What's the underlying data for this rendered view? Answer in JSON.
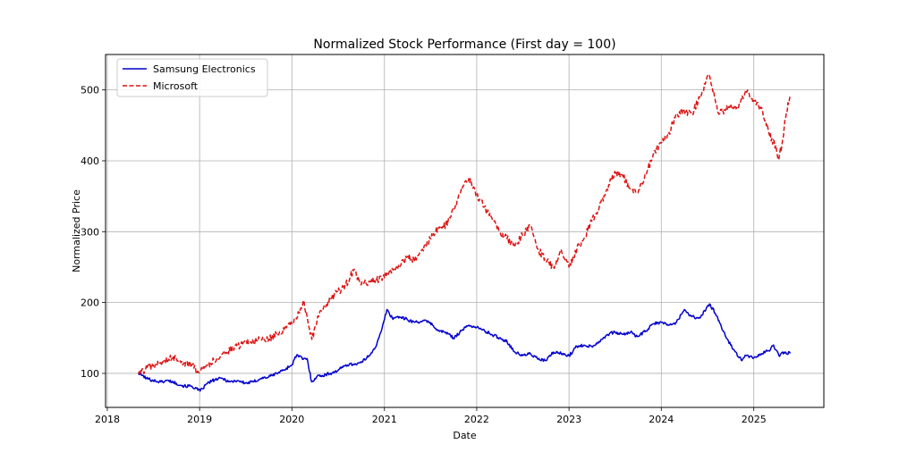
{
  "chart_data": {
    "type": "line",
    "title": "Normalized Stock Performance (First day = 100)",
    "xlabel": "Date",
    "ylabel": "Normalized Price",
    "xlim": [
      "2017-12-25",
      "2025-10-05"
    ],
    "ylim": [
      52,
      550
    ],
    "grid": true,
    "legend_position": "top-left",
    "x_ticks": [
      "2018",
      "2019",
      "2020",
      "2021",
      "2022",
      "2023",
      "2024",
      "2025"
    ],
    "y_ticks": [
      100,
      200,
      300,
      400,
      500
    ],
    "series": [
      {
        "name": "Samsung Electronics",
        "color": "#0000cc",
        "style": "solid",
        "points": [
          [
            "2018-05-04",
            100
          ],
          [
            "2018-05-20",
            97
          ],
          [
            "2018-06-05",
            93
          ],
          [
            "2018-07-01",
            90
          ],
          [
            "2018-08-01",
            88
          ],
          [
            "2018-09-01",
            90
          ],
          [
            "2018-10-01",
            86
          ],
          [
            "2018-11-01",
            82
          ],
          [
            "2018-12-01",
            82
          ],
          [
            "2019-01-03",
            75
          ],
          [
            "2019-02-01",
            86
          ],
          [
            "2019-03-01",
            91
          ],
          [
            "2019-04-01",
            93
          ],
          [
            "2019-05-01",
            88
          ],
          [
            "2019-06-01",
            90
          ],
          [
            "2019-07-01",
            86
          ],
          [
            "2019-08-01",
            88
          ],
          [
            "2019-09-01",
            93
          ],
          [
            "2019-10-01",
            95
          ],
          [
            "2019-11-01",
            100
          ],
          [
            "2019-12-01",
            105
          ],
          [
            "2020-01-01",
            112
          ],
          [
            "2020-01-20",
            126
          ],
          [
            "2020-02-15",
            120
          ],
          [
            "2020-03-01",
            121
          ],
          [
            "2020-03-19",
            88
          ],
          [
            "2020-04-10",
            96
          ],
          [
            "2020-05-01",
            97
          ],
          [
            "2020-06-01",
            100
          ],
          [
            "2020-07-01",
            104
          ],
          [
            "2020-08-01",
            112
          ],
          [
            "2020-09-01",
            113
          ],
          [
            "2020-10-01",
            115
          ],
          [
            "2020-11-01",
            125
          ],
          [
            "2020-12-01",
            140
          ],
          [
            "2020-12-20",
            160
          ],
          [
            "2021-01-11",
            190
          ],
          [
            "2021-02-01",
            178
          ],
          [
            "2021-03-01",
            180
          ],
          [
            "2021-04-01",
            176
          ],
          [
            "2021-05-01",
            172
          ],
          [
            "2021-06-01",
            174
          ],
          [
            "2021-07-01",
            172
          ],
          [
            "2021-08-01",
            160
          ],
          [
            "2021-09-01",
            158
          ],
          [
            "2021-10-01",
            150
          ],
          [
            "2021-11-01",
            160
          ],
          [
            "2021-12-01",
            168
          ],
          [
            "2022-01-01",
            165
          ],
          [
            "2022-02-01",
            160
          ],
          [
            "2022-03-01",
            155
          ],
          [
            "2022-04-01",
            150
          ],
          [
            "2022-05-01",
            145
          ],
          [
            "2022-06-01",
            130
          ],
          [
            "2022-07-01",
            125
          ],
          [
            "2022-08-01",
            128
          ],
          [
            "2022-09-01",
            120
          ],
          [
            "2022-10-01",
            118
          ],
          [
            "2022-11-01",
            130
          ],
          [
            "2022-12-01",
            128
          ],
          [
            "2023-01-01",
            125
          ],
          [
            "2023-02-01",
            138
          ],
          [
            "2023-03-01",
            140
          ],
          [
            "2023-04-01",
            138
          ],
          [
            "2023-05-01",
            145
          ],
          [
            "2023-06-01",
            155
          ],
          [
            "2023-07-01",
            158
          ],
          [
            "2023-08-01",
            155
          ],
          [
            "2023-09-01",
            158
          ],
          [
            "2023-10-01",
            152
          ],
          [
            "2023-11-01",
            160
          ],
          [
            "2023-12-01",
            170
          ],
          [
            "2024-01-01",
            172
          ],
          [
            "2024-02-01",
            168
          ],
          [
            "2024-03-01",
            172
          ],
          [
            "2024-04-01",
            190
          ],
          [
            "2024-05-01",
            180
          ],
          [
            "2024-06-01",
            178
          ],
          [
            "2024-07-10",
            198
          ],
          [
            "2024-08-01",
            185
          ],
          [
            "2024-09-01",
            160
          ],
          [
            "2024-10-01",
            140
          ],
          [
            "2024-11-15",
            118
          ],
          [
            "2024-12-01",
            125
          ],
          [
            "2025-01-01",
            122
          ],
          [
            "2025-02-01",
            128
          ],
          [
            "2025-03-01",
            132
          ],
          [
            "2025-03-20",
            140
          ],
          [
            "2025-04-10",
            125
          ],
          [
            "2025-05-01",
            130
          ],
          [
            "2025-05-25",
            128
          ]
        ]
      },
      {
        "name": "Microsoft",
        "color": "#dd1111",
        "style": "dashed",
        "points": [
          [
            "2018-05-04",
            100
          ],
          [
            "2018-06-01",
            106
          ],
          [
            "2018-07-01",
            110
          ],
          [
            "2018-08-01",
            115
          ],
          [
            "2018-09-01",
            120
          ],
          [
            "2018-10-01",
            122
          ],
          [
            "2018-11-01",
            115
          ],
          [
            "2018-12-01",
            112
          ],
          [
            "2018-12-24",
            103
          ],
          [
            "2019-01-15",
            110
          ],
          [
            "2019-02-01",
            112
          ],
          [
            "2019-03-01",
            118
          ],
          [
            "2019-04-01",
            128
          ],
          [
            "2019-05-01",
            132
          ],
          [
            "2019-06-01",
            138
          ],
          [
            "2019-07-01",
            145
          ],
          [
            "2019-08-01",
            145
          ],
          [
            "2019-09-01",
            148
          ],
          [
            "2019-10-01",
            148
          ],
          [
            "2019-11-01",
            155
          ],
          [
            "2019-12-01",
            162
          ],
          [
            "2020-01-01",
            170
          ],
          [
            "2020-02-01",
            185
          ],
          [
            "2020-02-15",
            203
          ],
          [
            "2020-03-01",
            180
          ],
          [
            "2020-03-20",
            148
          ],
          [
            "2020-04-15",
            180
          ],
          [
            "2020-05-01",
            188
          ],
          [
            "2020-06-01",
            205
          ],
          [
            "2020-07-01",
            215
          ],
          [
            "2020-08-01",
            225
          ],
          [
            "2020-09-01",
            245
          ],
          [
            "2020-10-01",
            225
          ],
          [
            "2020-11-01",
            230
          ],
          [
            "2020-12-01",
            232
          ],
          [
            "2021-01-01",
            235
          ],
          [
            "2021-02-01",
            248
          ],
          [
            "2021-03-01",
            250
          ],
          [
            "2021-04-01",
            265
          ],
          [
            "2021-05-01",
            260
          ],
          [
            "2021-06-01",
            275
          ],
          [
            "2021-07-01",
            290
          ],
          [
            "2021-08-01",
            305
          ],
          [
            "2021-09-01",
            310
          ],
          [
            "2021-10-01",
            330
          ],
          [
            "2021-11-01",
            360
          ],
          [
            "2021-12-01",
            375
          ],
          [
            "2022-01-01",
            350
          ],
          [
            "2022-02-01",
            335
          ],
          [
            "2022-03-01",
            320
          ],
          [
            "2022-04-01",
            300
          ],
          [
            "2022-05-01",
            290
          ],
          [
            "2022-06-01",
            280
          ],
          [
            "2022-07-01",
            295
          ],
          [
            "2022-08-01",
            310
          ],
          [
            "2022-09-01",
            275
          ],
          [
            "2022-10-01",
            260
          ],
          [
            "2022-11-01",
            250
          ],
          [
            "2022-12-01",
            275
          ],
          [
            "2023-01-01",
            250
          ],
          [
            "2023-02-01",
            275
          ],
          [
            "2023-03-01",
            290
          ],
          [
            "2023-04-01",
            315
          ],
          [
            "2023-05-01",
            335
          ],
          [
            "2023-06-01",
            360
          ],
          [
            "2023-07-01",
            385
          ],
          [
            "2023-08-01",
            380
          ],
          [
            "2023-09-01",
            360
          ],
          [
            "2023-10-01",
            355
          ],
          [
            "2023-11-01",
            380
          ],
          [
            "2023-12-01",
            410
          ],
          [
            "2024-01-01",
            425
          ],
          [
            "2024-02-01",
            440
          ],
          [
            "2024-03-01",
            465
          ],
          [
            "2024-04-01",
            470
          ],
          [
            "2024-05-01",
            465
          ],
          [
            "2024-06-01",
            490
          ],
          [
            "2024-07-05",
            520
          ],
          [
            "2024-07-20",
            505
          ],
          [
            "2024-08-10",
            470
          ],
          [
            "2024-09-01",
            470
          ],
          [
            "2024-10-01",
            480
          ],
          [
            "2024-11-01",
            475
          ],
          [
            "2024-12-01",
            500
          ],
          [
            "2025-01-01",
            485
          ],
          [
            "2025-02-01",
            475
          ],
          [
            "2025-03-01",
            440
          ],
          [
            "2025-04-01",
            415
          ],
          [
            "2025-04-10",
            402
          ],
          [
            "2025-04-25",
            430
          ],
          [
            "2025-05-10",
            470
          ],
          [
            "2025-05-25",
            493
          ]
        ]
      }
    ]
  }
}
